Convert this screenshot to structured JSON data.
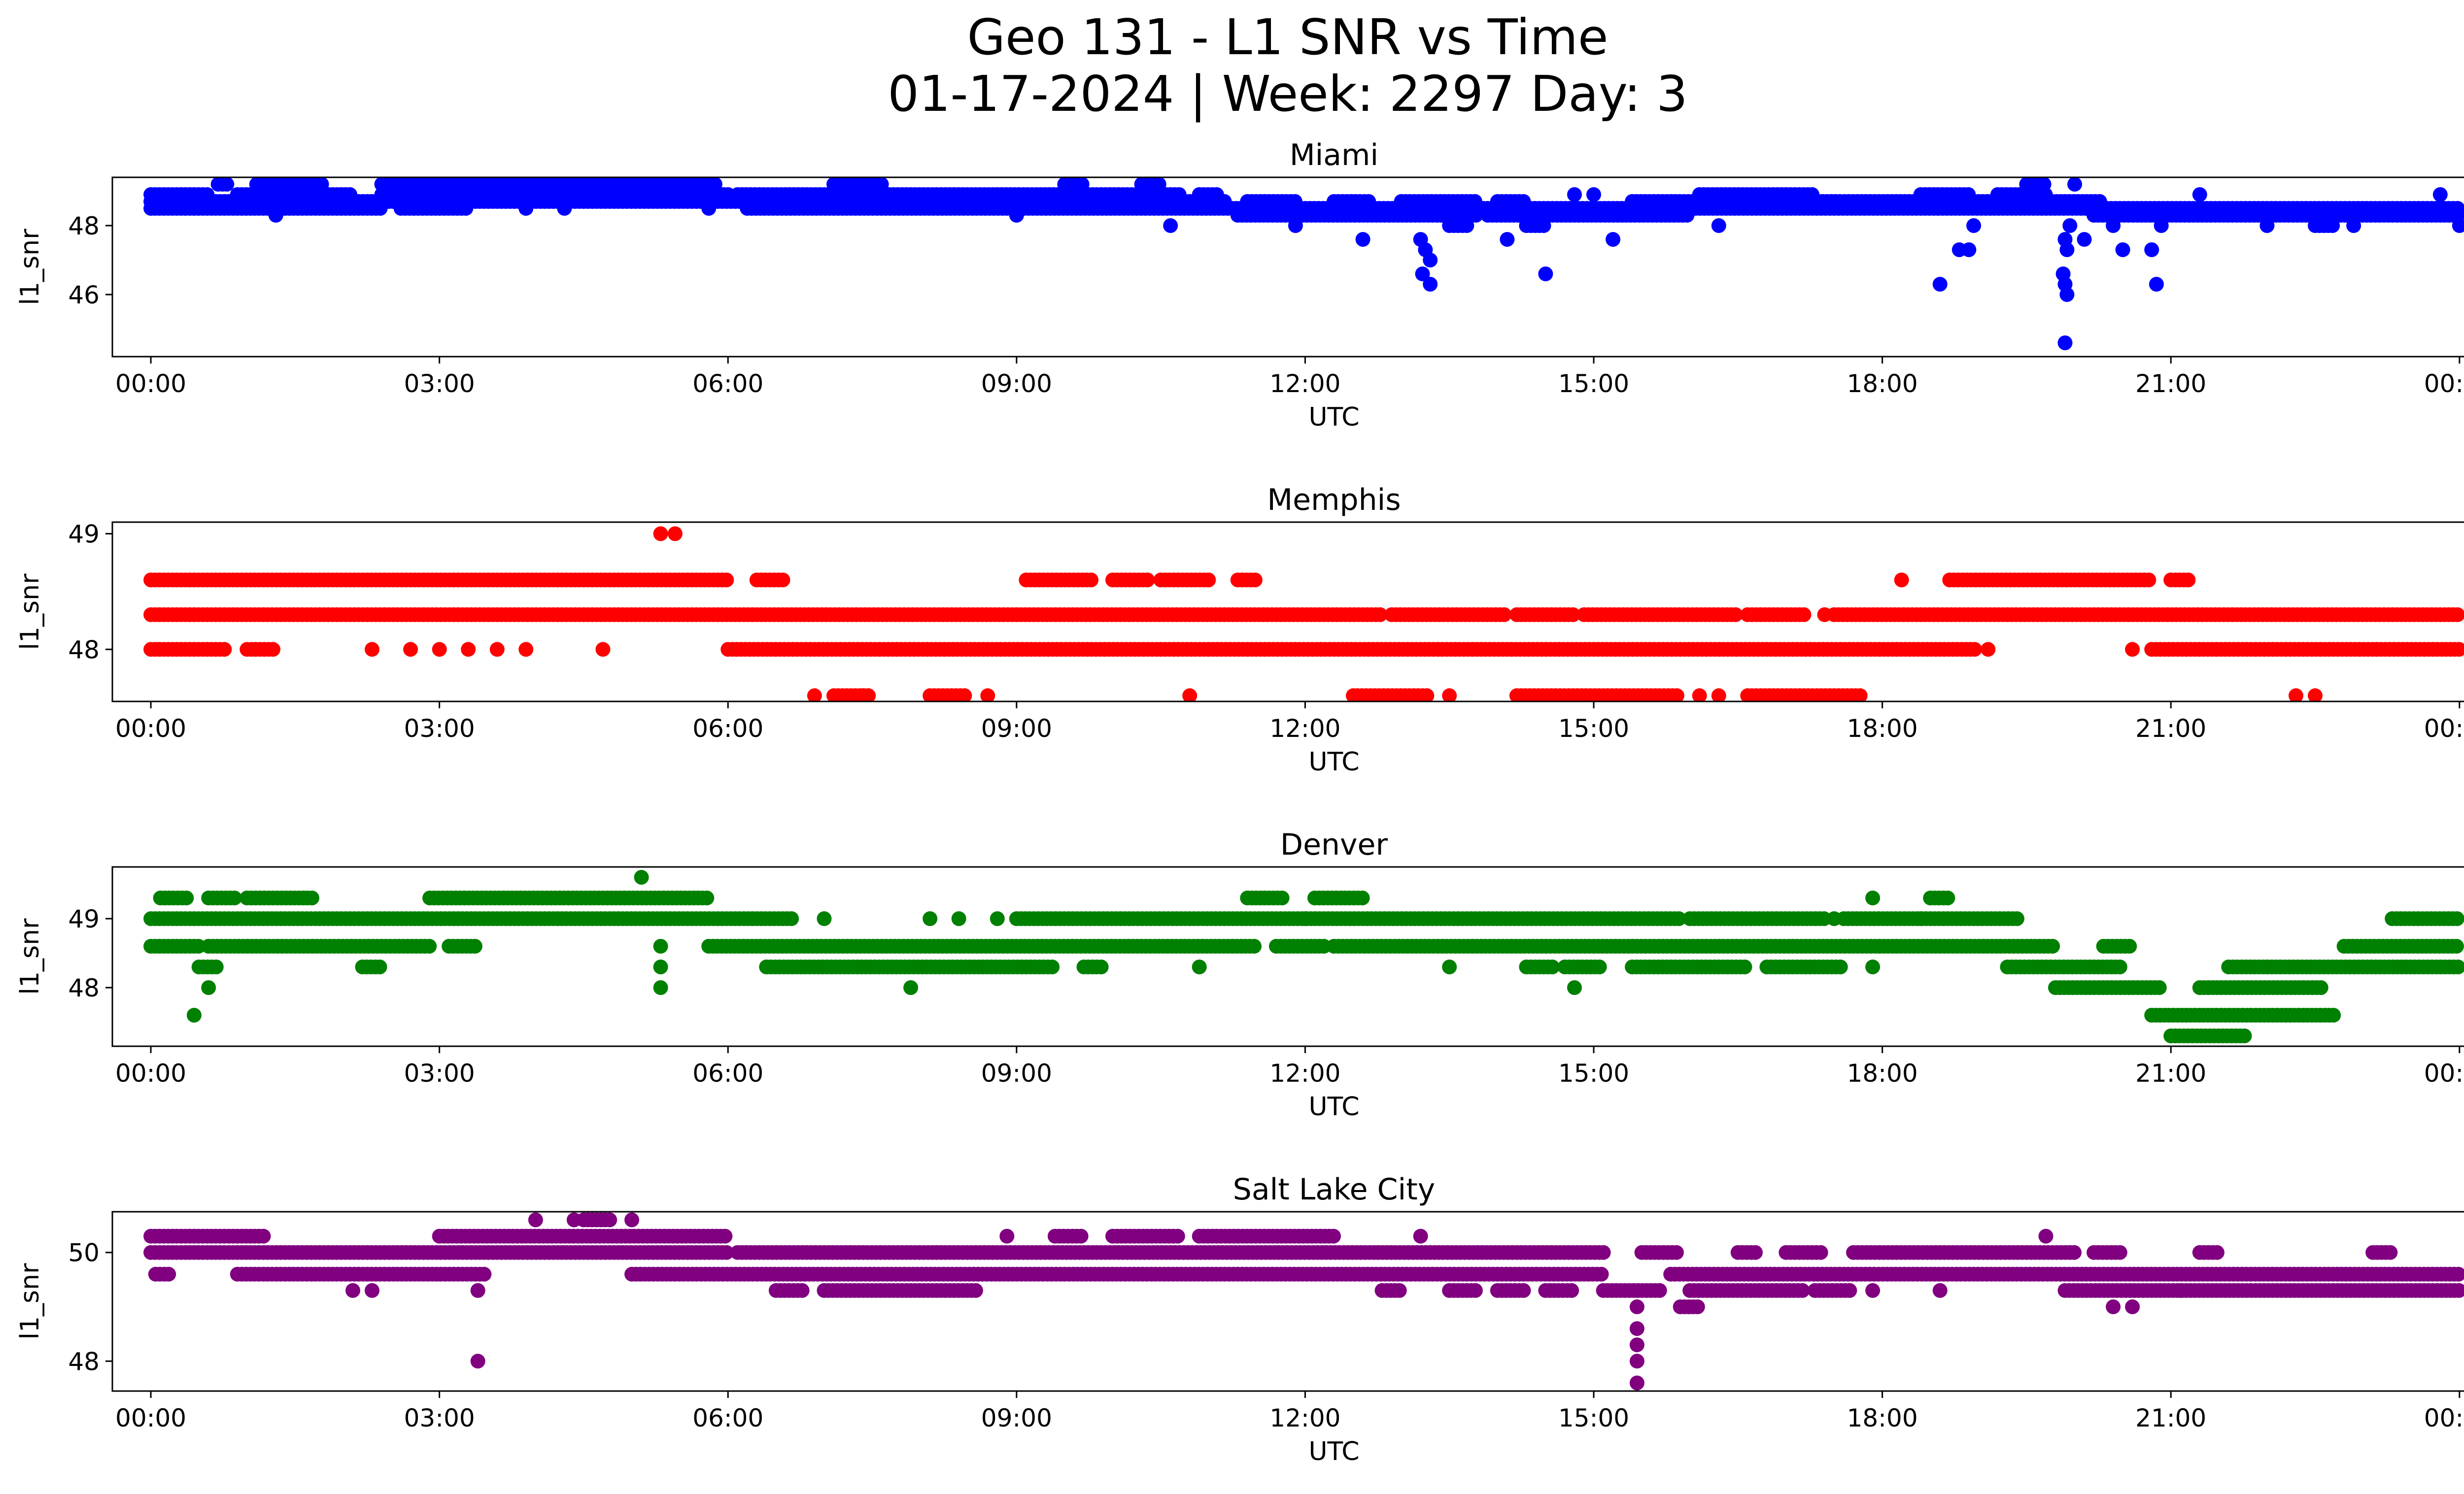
{
  "figure": {
    "title_line1": "Geo 131 - L1 SNR vs Time",
    "title_line2": "01-17-2024 | Week: 2297 Day: 3"
  },
  "chart_data": [
    {
      "type": "scatter",
      "title": "Miami",
      "xlabel": "UTC",
      "ylabel": "l1_snr",
      "color": "#0000ff",
      "xlim": [
        -0.4,
        25.0
      ],
      "ylim": [
        44.2,
        49.4
      ],
      "xticks": [
        "00:00",
        "03:00",
        "06:00",
        "09:00",
        "12:00",
        "15:00",
        "18:00",
        "21:00",
        "00:00"
      ],
      "xtick_hours": [
        0,
        3,
        6,
        9,
        12,
        15,
        18,
        21,
        24
      ],
      "yticks": [
        46,
        48
      ],
      "levels": [
        {
          "y": 48.7,
          "ranges": [
            [
              0,
              11.2
            ],
            [
              11.4,
              11.9
            ],
            [
              12.3,
              12.7
            ],
            [
              13.0,
              13.8
            ],
            [
              14.0,
              14.3
            ],
            [
              15.4,
              20.3
            ]
          ]
        },
        {
          "y": 48.9,
          "ranges": [
            [
              0,
              0.6
            ],
            [
              0.9,
              2.1
            ],
            [
              2.4,
              6.0
            ],
            [
              6.1,
              10.7
            ],
            [
              10.9,
              11.1
            ],
            [
              16.1,
              17.3
            ],
            [
              18.4,
              18.9
            ],
            [
              19.2,
              19.7
            ]
          ]
        },
        {
          "y": 48.5,
          "ranges": [
            [
              0,
              2.4
            ],
            [
              2.6,
              3.3
            ],
            [
              6.2,
              15.5
            ],
            [
              15.7,
              24.0
            ]
          ]
        },
        {
          "y": 48.3,
          "ranges": [
            [
              11.3,
              13.8
            ],
            [
              13.9,
              16.0
            ],
            [
              20.2,
              24.0
            ]
          ]
        },
        {
          "y": 49.2,
          "ranges": [
            [
              0.7,
              0.8
            ],
            [
              1.1,
              1.8
            ],
            [
              2.4,
              5.9
            ],
            [
              7.1,
              7.6
            ],
            [
              9.5,
              9.7
            ],
            [
              10.3,
              10.5
            ],
            [
              19.5,
              19.7
            ]
          ]
        },
        {
          "y": 48.0,
          "ranges": [
            [
              13.5,
              13.7
            ],
            [
              14.3,
              14.5
            ],
            [
              22.5,
              22.7
            ]
          ]
        }
      ],
      "points": [
        {
          "x": 10.6,
          "y": 48.0
        },
        {
          "x": 11.9,
          "y": 48.0
        },
        {
          "x": 12.6,
          "y": 47.6
        },
        {
          "x": 13.2,
          "y": 47.6
        },
        {
          "x": 13.25,
          "y": 47.3
        },
        {
          "x": 13.3,
          "y": 47.0
        },
        {
          "x": 13.22,
          "y": 46.6
        },
        {
          "x": 13.3,
          "y": 46.3
        },
        {
          "x": 14.1,
          "y": 47.6
        },
        {
          "x": 14.5,
          "y": 46.6
        },
        {
          "x": 15.2,
          "y": 47.6
        },
        {
          "x": 16.3,
          "y": 48.0
        },
        {
          "x": 18.6,
          "y": 46.3
        },
        {
          "x": 18.8,
          "y": 47.3
        },
        {
          "x": 18.9,
          "y": 47.3
        },
        {
          "x": 18.95,
          "y": 48.0
        },
        {
          "x": 19.9,
          "y": 47.6
        },
        {
          "x": 19.92,
          "y": 47.3
        },
        {
          "x": 19.88,
          "y": 46.6
        },
        {
          "x": 19.9,
          "y": 46.3
        },
        {
          "x": 19.92,
          "y": 46.0
        },
        {
          "x": 19.9,
          "y": 44.6
        },
        {
          "x": 20.1,
          "y": 47.6
        },
        {
          "x": 20.5,
          "y": 47.3
        },
        {
          "x": 20.8,
          "y": 47.3
        },
        {
          "x": 20.85,
          "y": 46.3
        },
        {
          "x": 20.9,
          "y": 48.0
        },
        {
          "x": 20.0,
          "y": 49.2
        },
        {
          "x": 19.95,
          "y": 48.0
        },
        {
          "x": 20.4,
          "y": 48.0
        },
        {
          "x": 21.3,
          "y": 48.9
        },
        {
          "x": 23.8,
          "y": 48.9
        },
        {
          "x": 24.0,
          "y": 48.0
        },
        {
          "x": 22.9,
          "y": 48.0
        },
        {
          "x": 22.0,
          "y": 48.0
        },
        {
          "x": 1.3,
          "y": 48.3
        },
        {
          "x": 3.9,
          "y": 48.5
        },
        {
          "x": 4.3,
          "y": 48.5
        },
        {
          "x": 5.8,
          "y": 48.5
        },
        {
          "x": 9.0,
          "y": 48.3
        },
        {
          "x": 14.8,
          "y": 48.9
        },
        {
          "x": 15.0,
          "y": 48.9
        }
      ]
    },
    {
      "type": "scatter",
      "title": "Memphis",
      "xlabel": "UTC",
      "ylabel": "l1_snr",
      "color": "#ff0000",
      "xlim": [
        -0.4,
        25.0
      ],
      "ylim": [
        47.55,
        49.1
      ],
      "xticks": [
        "00:00",
        "03:00",
        "06:00",
        "09:00",
        "12:00",
        "15:00",
        "18:00",
        "21:00",
        "00:00"
      ],
      "xtick_hours": [
        0,
        3,
        6,
        9,
        12,
        15,
        18,
        21,
        24
      ],
      "yticks": [
        48,
        49
      ],
      "levels": [
        {
          "y": 48.3,
          "ranges": [
            [
              0,
              12.8
            ],
            [
              12.9,
              14.1
            ],
            [
              14.2,
              14.8
            ],
            [
              14.9,
              16.5
            ],
            [
              16.6,
              17.2
            ],
            [
              17.5,
              24.0
            ]
          ]
        },
        {
          "y": 48.6,
          "ranges": [
            [
              0,
              6.0
            ],
            [
              6.3,
              6.6
            ],
            [
              9.1,
              9.8
            ],
            [
              10.0,
              10.4
            ],
            [
              10.5,
              11.0
            ],
            [
              11.3,
              11.5
            ],
            [
              18.7,
              20.8
            ],
            [
              21.0,
              21.2
            ]
          ]
        },
        {
          "y": 48.0,
          "ranges": [
            [
              0,
              0.8
            ],
            [
              1.0,
              1.3
            ],
            [
              6.0,
              19.0
            ],
            [
              20.8,
              24.0
            ]
          ]
        },
        {
          "y": 47.6,
          "ranges": [
            [
              7.1,
              7.5
            ],
            [
              8.1,
              8.5
            ],
            [
              12.5,
              13.3
            ],
            [
              14.2,
              15.9
            ],
            [
              16.6,
              17.8
            ]
          ]
        }
      ],
      "points": [
        {
          "x": 5.3,
          "y": 49.0
        },
        {
          "x": 5.45,
          "y": 49.0
        },
        {
          "x": 2.3,
          "y": 48.0
        },
        {
          "x": 2.7,
          "y": 48.0
        },
        {
          "x": 3.0,
          "y": 48.0
        },
        {
          "x": 3.3,
          "y": 48.0
        },
        {
          "x": 3.6,
          "y": 48.0
        },
        {
          "x": 3.9,
          "y": 48.0
        },
        {
          "x": 4.7,
          "y": 48.0
        },
        {
          "x": 6.9,
          "y": 47.6
        },
        {
          "x": 7.4,
          "y": 47.6
        },
        {
          "x": 8.7,
          "y": 47.6
        },
        {
          "x": 10.8,
          "y": 47.6
        },
        {
          "x": 13.5,
          "y": 47.6
        },
        {
          "x": 16.1,
          "y": 47.6
        },
        {
          "x": 16.3,
          "y": 47.6
        },
        {
          "x": 22.3,
          "y": 47.6
        },
        {
          "x": 22.5,
          "y": 47.6
        },
        {
          "x": 18.2,
          "y": 48.6
        },
        {
          "x": 17.4,
          "y": 48.3
        },
        {
          "x": 20.6,
          "y": 48.0
        },
        {
          "x": 19.1,
          "y": 48.0
        }
      ]
    },
    {
      "type": "scatter",
      "title": "Denver",
      "xlabel": "UTC",
      "ylabel": "l1_snr",
      "color": "#008000",
      "xlim": [
        -0.4,
        25.0
      ],
      "ylim": [
        47.15,
        49.75
      ],
      "xticks": [
        "00:00",
        "03:00",
        "06:00",
        "09:00",
        "12:00",
        "15:00",
        "18:00",
        "21:00",
        "00:00"
      ],
      "xtick_hours": [
        0,
        3,
        6,
        9,
        12,
        15,
        18,
        21,
        24
      ],
      "yticks": [
        48,
        49
      ],
      "levels": [
        {
          "y": 49.0,
          "ranges": [
            [
              0,
              6.7
            ],
            [
              9.0,
              15.9
            ],
            [
              16.0,
              17.4
            ],
            [
              17.6,
              19.4
            ],
            [
              23.3,
              24.0
            ]
          ]
        },
        {
          "y": 49.3,
          "ranges": [
            [
              0.1,
              0.4
            ],
            [
              0.6,
              0.9
            ],
            [
              1.0,
              1.7
            ],
            [
              2.9,
              5.8
            ],
            [
              11.4,
              11.8
            ],
            [
              12.1,
              12.6
            ],
            [
              18.5,
              18.7
            ]
          ]
        },
        {
          "y": 48.6,
          "ranges": [
            [
              0,
              0.5
            ],
            [
              0.6,
              2.9
            ],
            [
              3.1,
              3.4
            ],
            [
              5.8,
              11.5
            ],
            [
              11.7,
              12.2
            ],
            [
              12.3,
              19.8
            ],
            [
              20.3,
              20.6
            ],
            [
              22.8,
              24.0
            ]
          ]
        },
        {
          "y": 48.3,
          "ranges": [
            [
              0.5,
              0.7
            ],
            [
              2.2,
              2.4
            ],
            [
              6.4,
              9.4
            ],
            [
              9.7,
              9.9
            ],
            [
              14.3,
              14.6
            ],
            [
              14.7,
              15.1
            ],
            [
              15.4,
              16.6
            ],
            [
              16.8,
              17.6
            ],
            [
              19.3,
              20.5
            ],
            [
              21.6,
              24.0
            ]
          ]
        },
        {
          "y": 48.0,
          "ranges": [
            [
              19.8,
              20.9
            ],
            [
              21.3,
              22.6
            ]
          ]
        },
        {
          "y": 47.6,
          "ranges": [
            [
              20.8,
              22.7
            ]
          ]
        },
        {
          "y": 47.3,
          "ranges": [
            [
              21.0,
              21.8
            ]
          ]
        }
      ],
      "points": [
        {
          "x": 0.45,
          "y": 47.6
        },
        {
          "x": 0.6,
          "y": 48.0
        },
        {
          "x": 5.1,
          "y": 49.6
        },
        {
          "x": 5.3,
          "y": 48.6
        },
        {
          "x": 5.3,
          "y": 48.3
        },
        {
          "x": 5.3,
          "y": 48.0
        },
        {
          "x": 7.0,
          "y": 49.0
        },
        {
          "x": 7.9,
          "y": 48.0
        },
        {
          "x": 8.1,
          "y": 49.0
        },
        {
          "x": 8.4,
          "y": 49.0
        },
        {
          "x": 8.8,
          "y": 49.0
        },
        {
          "x": 10.9,
          "y": 48.3
        },
        {
          "x": 13.5,
          "y": 48.3
        },
        {
          "x": 14.8,
          "y": 48.0
        },
        {
          "x": 17.9,
          "y": 49.3
        },
        {
          "x": 17.9,
          "y": 48.3
        },
        {
          "x": 18.4,
          "y": 49.0
        },
        {
          "x": 22.0,
          "y": 48.3
        },
        {
          "x": 12.0,
          "y": 49.0
        },
        {
          "x": 17.5,
          "y": 49.0
        }
      ]
    },
    {
      "type": "scatter",
      "title": "Salt Lake City",
      "xlabel": "UTC",
      "ylabel": "l1_snr",
      "color": "#800080",
      "xlim": [
        -0.4,
        25.0
      ],
      "ylim": [
        47.45,
        50.75
      ],
      "xticks": [
        "00:00",
        "03:00",
        "06:00",
        "09:00",
        "12:00",
        "15:00",
        "18:00",
        "21:00",
        "00:00"
      ],
      "xtick_hours": [
        0,
        3,
        6,
        9,
        12,
        15,
        18,
        21,
        24
      ],
      "yticks": [
        48,
        50
      ],
      "levels": [
        {
          "y": 50.0,
          "ranges": [
            [
              0,
              6.0
            ],
            [
              6.1,
              15.1
            ],
            [
              15.5,
              15.9
            ],
            [
              16.5,
              16.7
            ],
            [
              17.0,
              17.4
            ],
            [
              17.7,
              20.0
            ],
            [
              20.2,
              20.5
            ],
            [
              21.3,
              21.5
            ],
            [
              23.1,
              23.3
            ]
          ]
        },
        {
          "y": 50.3,
          "ranges": [
            [
              0,
              1.2
            ],
            [
              3.0,
              6.0
            ],
            [
              9.4,
              9.7
            ],
            [
              10.0,
              10.7
            ],
            [
              10.9,
              12.3
            ]
          ]
        },
        {
          "y": 49.6,
          "ranges": [
            [
              0.05,
              0.2
            ],
            [
              0.9,
              3.5
            ],
            [
              5.0,
              15.1
            ],
            [
              15.8,
              24.0
            ]
          ]
        },
        {
          "y": 49.3,
          "ranges": [
            [
              6.5,
              6.8
            ],
            [
              7.0,
              8.6
            ],
            [
              12.8,
              13.0
            ],
            [
              13.5,
              13.8
            ],
            [
              14.0,
              14.3
            ],
            [
              14.5,
              14.8
            ],
            [
              15.1,
              15.7
            ],
            [
              16.0,
              17.2
            ],
            [
              17.3,
              17.7
            ],
            [
              19.9,
              24.0
            ]
          ]
        },
        {
          "y": 49.0,
          "ranges": [
            [
              15.9,
              16.1
            ]
          ]
        },
        {
          "y": 50.6,
          "ranges": [
            [
              4.5,
              4.8
            ]
          ]
        }
      ],
      "points": [
        {
          "x": 3.4,
          "y": 48.0
        },
        {
          "x": 3.4,
          "y": 49.3
        },
        {
          "x": 2.1,
          "y": 49.3
        },
        {
          "x": 2.3,
          "y": 49.3
        },
        {
          "x": 4.0,
          "y": 50.6
        },
        {
          "x": 4.4,
          "y": 50.6
        },
        {
          "x": 5.0,
          "y": 50.6
        },
        {
          "x": 8.9,
          "y": 50.3
        },
        {
          "x": 13.2,
          "y": 50.3
        },
        {
          "x": 19.7,
          "y": 50.3
        },
        {
          "x": 15.45,
          "y": 49.0
        },
        {
          "x": 15.45,
          "y": 48.6
        },
        {
          "x": 15.45,
          "y": 48.3
        },
        {
          "x": 15.45,
          "y": 48.0
        },
        {
          "x": 15.45,
          "y": 47.6
        },
        {
          "x": 20.4,
          "y": 49.0
        },
        {
          "x": 20.6,
          "y": 49.0
        },
        {
          "x": 18.6,
          "y": 49.3
        },
        {
          "x": 17.9,
          "y": 49.3
        },
        {
          "x": 21.1,
          "y": 49.3
        }
      ]
    }
  ]
}
